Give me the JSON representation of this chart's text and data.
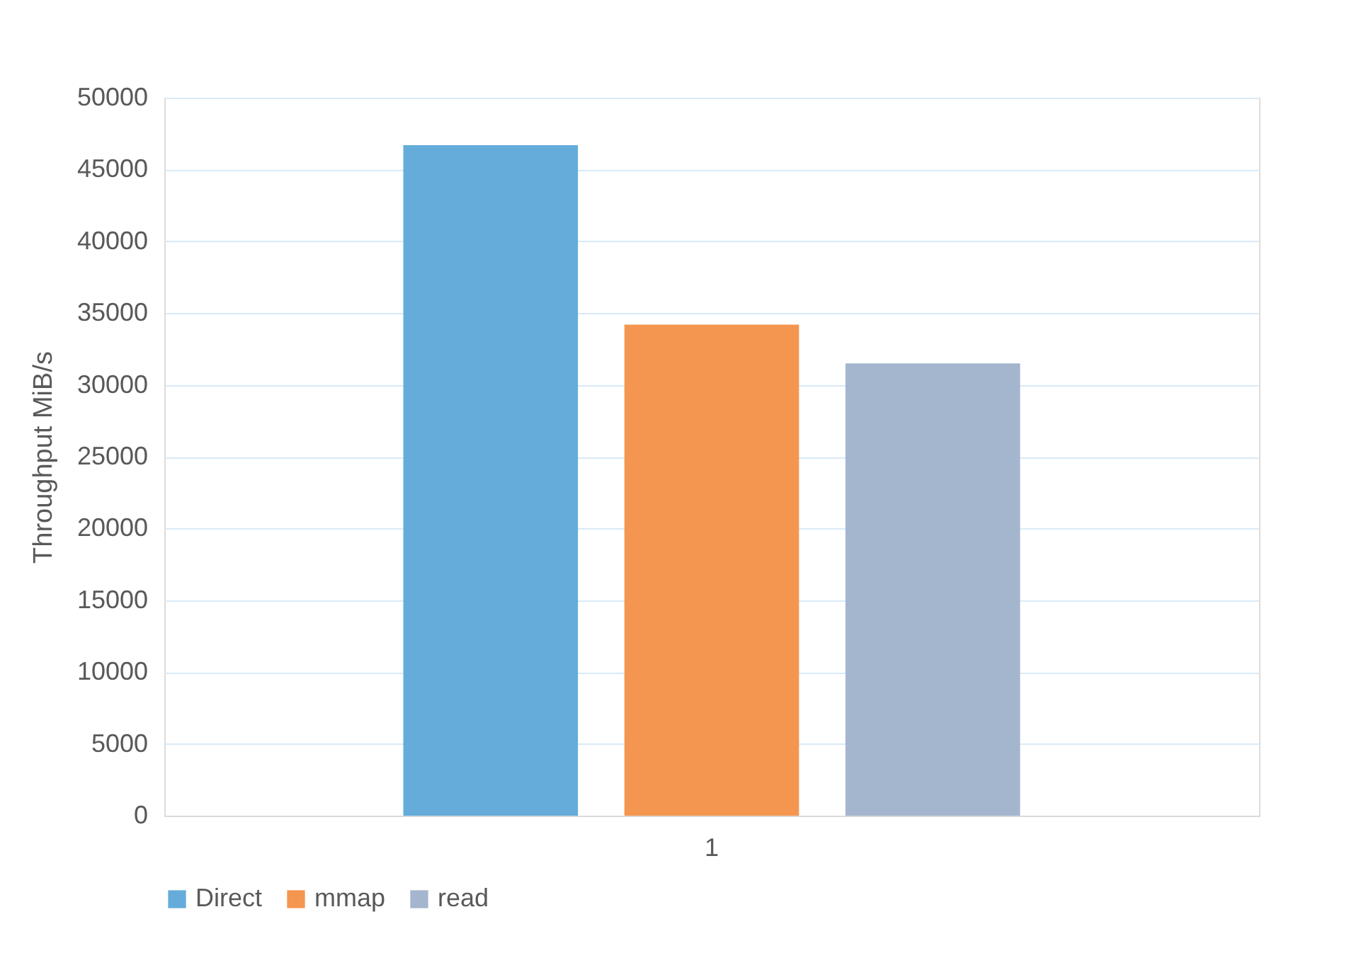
{
  "chart_data": {
    "type": "bar",
    "ylabel": "Throughput MiB/s",
    "categories": [
      "1"
    ],
    "series": [
      {
        "name": "Direct",
        "color": "#65acdb",
        "values": [
          46700
        ]
      },
      {
        "name": "mmap",
        "color": "#f4964f",
        "values": [
          34200
        ]
      },
      {
        "name": "read",
        "color": "#a4b5ce",
        "values": [
          31500
        ]
      }
    ],
    "ylim": [
      0,
      50000
    ],
    "yticks": [
      0,
      5000,
      10000,
      15000,
      20000,
      25000,
      30000,
      35000,
      40000,
      45000,
      50000
    ],
    "grid": "y",
    "legend": "bottom"
  }
}
